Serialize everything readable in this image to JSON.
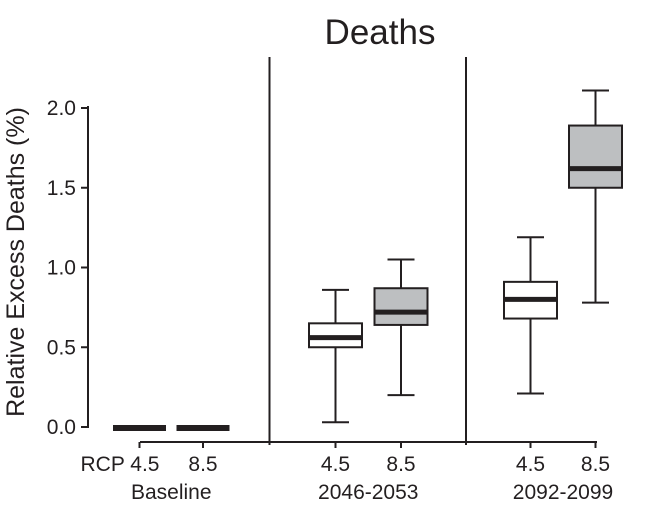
{
  "chart_data": {
    "type": "boxplot",
    "title": "Deaths",
    "ylabel": "Relative Excess Deaths (%)",
    "xlabel": "",
    "ylim": [
      0.0,
      2.15
    ],
    "yticks": [
      0.0,
      0.5,
      1.0,
      1.5,
      2.0
    ],
    "ytick_labels": [
      "0.0",
      "0.5",
      "1.0",
      "1.5",
      "2.0"
    ],
    "grid": false,
    "legend": "none",
    "rcp_prefix": "RCP",
    "groups": [
      {
        "label": "Baseline",
        "boxes": [
          {
            "scenario": "4.5",
            "tick_label": "RCP 4.5",
            "fill": "white",
            "flat": true,
            "median": 0.0
          },
          {
            "scenario": "8.5",
            "tick_label": "8.5",
            "fill": "gray",
            "flat": true,
            "median": 0.0
          }
        ]
      },
      {
        "label": "2046-2053",
        "boxes": [
          {
            "scenario": "4.5",
            "tick_label": "4.5",
            "fill": "white",
            "flat": false,
            "whisker_low": 0.03,
            "q1": 0.5,
            "median": 0.56,
            "q3": 0.65,
            "whisker_high": 0.86
          },
          {
            "scenario": "8.5",
            "tick_label": "8.5",
            "fill": "gray",
            "flat": false,
            "whisker_low": 0.2,
            "q1": 0.64,
            "median": 0.72,
            "q3": 0.87,
            "whisker_high": 1.05
          }
        ]
      },
      {
        "label": "2092-2099",
        "boxes": [
          {
            "scenario": "4.5",
            "tick_label": "4.5",
            "fill": "white",
            "flat": false,
            "whisker_low": 0.21,
            "q1": 0.68,
            "median": 0.8,
            "q3": 0.91,
            "whisker_high": 1.19
          },
          {
            "scenario": "8.5",
            "tick_label": "8.5",
            "fill": "gray",
            "flat": false,
            "whisker_low": 0.78,
            "q1": 1.5,
            "median": 1.62,
            "q3": 1.89,
            "whisker_high": 2.11
          }
        ]
      }
    ],
    "colors": {
      "stroke": "#231f20",
      "box_fill_white": "#ffffff",
      "box_fill_gray": "#bdbfc1",
      "background": "#ffffff"
    }
  }
}
